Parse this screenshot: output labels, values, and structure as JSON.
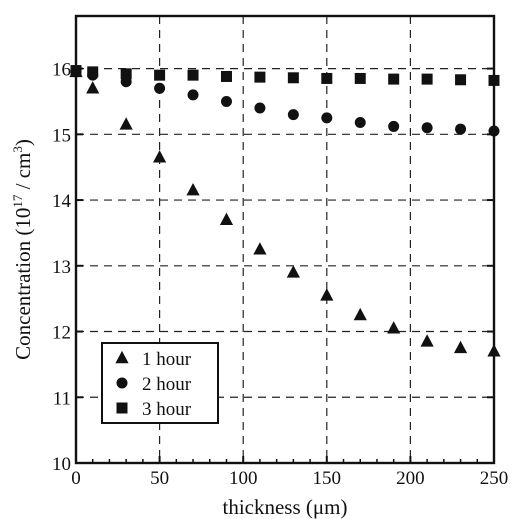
{
  "chart_data": {
    "type": "scatter",
    "title": "",
    "xlabel": "thickness (μm)",
    "ylabel_main": "Concentration (10",
    "ylabel_sup": "17",
    "ylabel_tail": " / cm",
    "ylabel_sup2": "3",
    "ylabel_end": ")",
    "xlim": [
      0,
      250
    ],
    "ylim": [
      10,
      16.8
    ],
    "xticks": [
      0,
      50,
      100,
      150,
      200,
      250
    ],
    "yticks": [
      10,
      11,
      12,
      13,
      14,
      15,
      16
    ],
    "xtick_labels": [
      "0",
      "50",
      "100",
      "150",
      "200",
      "250"
    ],
    "ytick_labels": [
      "10",
      "11",
      "12",
      "13",
      "14",
      "15",
      "16"
    ],
    "grid": true,
    "legend_position": "bottom-left",
    "series": [
      {
        "name": "1 hour",
        "marker": "triangle",
        "x": [
          0,
          10,
          30,
          50,
          70,
          90,
          110,
          130,
          150,
          170,
          190,
          210,
          230,
          250
        ],
        "y": [
          15.95,
          15.7,
          15.15,
          14.65,
          14.15,
          13.7,
          13.25,
          12.9,
          12.55,
          12.25,
          12.05,
          11.85,
          11.75,
          11.7
        ]
      },
      {
        "name": "2 hour",
        "marker": "circle",
        "x": [
          0,
          10,
          30,
          50,
          70,
          90,
          110,
          130,
          150,
          170,
          190,
          210,
          230,
          250
        ],
        "y": [
          15.95,
          15.9,
          15.8,
          15.7,
          15.6,
          15.5,
          15.4,
          15.3,
          15.25,
          15.18,
          15.12,
          15.1,
          15.08,
          15.05
        ]
      },
      {
        "name": "3 hour",
        "marker": "square",
        "x": [
          0,
          10,
          30,
          50,
          70,
          90,
          110,
          130,
          150,
          170,
          190,
          210,
          230,
          250
        ],
        "y": [
          15.97,
          15.95,
          15.92,
          15.9,
          15.9,
          15.88,
          15.87,
          15.86,
          15.85,
          15.85,
          15.84,
          15.84,
          15.83,
          15.82
        ]
      }
    ]
  }
}
